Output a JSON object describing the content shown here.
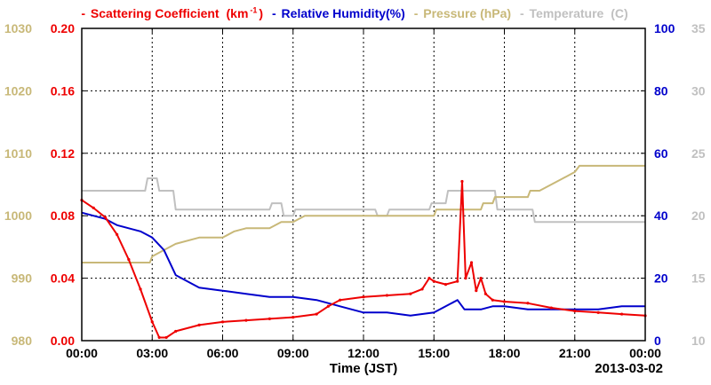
{
  "chart_data": {
    "type": "line",
    "title": "",
    "xlabel": "Time (JST)",
    "date_label": "2013-03-02",
    "x_ticks": [
      "00:00",
      "03:00",
      "06:00",
      "09:00",
      "12:00",
      "15:00",
      "18:00",
      "21:00",
      "00:00"
    ],
    "xlim_hours": [
      0,
      24
    ],
    "grid": true,
    "legend_position": "top",
    "axes": {
      "scattering": {
        "range": [
          0,
          0.2
        ],
        "ticks": [
          "0.00",
          "0.04",
          "0.08",
          "0.12",
          "0.16",
          "0.20"
        ],
        "side": "left-inner"
      },
      "pressure": {
        "range": [
          980,
          1030
        ],
        "ticks": [
          "980",
          "990",
          "1000",
          "1010",
          "1020",
          "1030"
        ],
        "side": "left-outer"
      },
      "humidity": {
        "range": [
          0,
          100
        ],
        "ticks": [
          "0",
          "20",
          "40",
          "60",
          "80",
          "100"
        ],
        "side": "right-inner"
      },
      "temperature": {
        "range": [
          10,
          35
        ],
        "ticks": [
          "10",
          "15",
          "20",
          "25",
          "30",
          "35"
        ],
        "side": "right-outer"
      }
    },
    "series": [
      {
        "name": "Scattering Coefficient",
        "unit_prefix": "(km",
        "unit_sup": "-1",
        "unit_suffix": ")",
        "axis": "scattering",
        "color": "#ee0000",
        "points": [
          [
            0,
            0.09
          ],
          [
            0.5,
            0.085
          ],
          [
            1.0,
            0.079
          ],
          [
            1.5,
            0.068
          ],
          [
            2.0,
            0.052
          ],
          [
            2.5,
            0.033
          ],
          [
            3.0,
            0.012
          ],
          [
            3.3,
            0.002
          ],
          [
            3.6,
            0.002
          ],
          [
            4.0,
            0.006
          ],
          [
            5.0,
            0.01
          ],
          [
            6.0,
            0.012
          ],
          [
            7.0,
            0.013
          ],
          [
            8.0,
            0.014
          ],
          [
            9.0,
            0.015
          ],
          [
            10.0,
            0.017
          ],
          [
            10.5,
            0.022
          ],
          [
            11.0,
            0.026
          ],
          [
            12.0,
            0.028
          ],
          [
            13.0,
            0.029
          ],
          [
            14.0,
            0.03
          ],
          [
            14.5,
            0.033
          ],
          [
            14.8,
            0.04
          ],
          [
            15.0,
            0.038
          ],
          [
            15.5,
            0.036
          ],
          [
            16.0,
            0.038
          ],
          [
            16.2,
            0.102
          ],
          [
            16.35,
            0.04
          ],
          [
            16.6,
            0.05
          ],
          [
            16.8,
            0.032
          ],
          [
            17.0,
            0.04
          ],
          [
            17.2,
            0.03
          ],
          [
            17.5,
            0.026
          ],
          [
            18.0,
            0.025
          ],
          [
            19.0,
            0.024
          ],
          [
            20.0,
            0.021
          ],
          [
            21.0,
            0.019
          ],
          [
            22.0,
            0.018
          ],
          [
            23.0,
            0.017
          ],
          [
            24.0,
            0.016
          ]
        ]
      },
      {
        "name": "Relative Humidity(%)",
        "axis": "humidity",
        "color": "#0000cc",
        "points": [
          [
            0,
            41
          ],
          [
            0.5,
            40
          ],
          [
            1.0,
            39
          ],
          [
            1.5,
            37
          ],
          [
            2.0,
            36
          ],
          [
            2.5,
            35
          ],
          [
            3.0,
            33
          ],
          [
            3.5,
            29
          ],
          [
            4.0,
            21
          ],
          [
            5.0,
            17
          ],
          [
            6.0,
            16
          ],
          [
            7.0,
            15
          ],
          [
            8.0,
            14
          ],
          [
            9.0,
            14
          ],
          [
            10.0,
            13
          ],
          [
            11.0,
            11
          ],
          [
            12.0,
            9
          ],
          [
            13.0,
            9
          ],
          [
            14.0,
            8
          ],
          [
            15.0,
            9
          ],
          [
            15.5,
            11
          ],
          [
            16.0,
            13
          ],
          [
            16.3,
            10
          ],
          [
            17.0,
            10
          ],
          [
            17.5,
            11
          ],
          [
            18.0,
            11
          ],
          [
            19.0,
            10
          ],
          [
            20.0,
            10
          ],
          [
            21.0,
            10
          ],
          [
            22.0,
            10
          ],
          [
            23.0,
            11
          ],
          [
            24.0,
            11
          ]
        ]
      },
      {
        "name": "Pressure (hPa)",
        "axis": "pressure",
        "color": "#c8b878",
        "points": [
          [
            0,
            992.5
          ],
          [
            2.9,
            992.5
          ],
          [
            3.0,
            993.5
          ],
          [
            3.5,
            994.5
          ],
          [
            4.0,
            995.5
          ],
          [
            5.0,
            996.5
          ],
          [
            6.0,
            996.5
          ],
          [
            6.5,
            997.5
          ],
          [
            7.0,
            998
          ],
          [
            8.0,
            998
          ],
          [
            8.5,
            999
          ],
          [
            9.0,
            999
          ],
          [
            9.5,
            1000
          ],
          [
            15.0,
            1000
          ],
          [
            15.1,
            1001
          ],
          [
            17.0,
            1001
          ],
          [
            17.1,
            1002
          ],
          [
            17.5,
            1002
          ],
          [
            17.6,
            1003
          ],
          [
            19.0,
            1003
          ],
          [
            19.1,
            1004
          ],
          [
            19.5,
            1004
          ],
          [
            20.0,
            1005
          ],
          [
            20.5,
            1006
          ],
          [
            21.0,
            1007
          ],
          [
            21.2,
            1008
          ],
          [
            24.0,
            1008
          ]
        ]
      },
      {
        "name": "Temperature",
        "unit": "(C)",
        "axis": "temperature",
        "color": "#c0c0c0",
        "points": [
          [
            0,
            22
          ],
          [
            2.7,
            22
          ],
          [
            2.8,
            23
          ],
          [
            3.2,
            23
          ],
          [
            3.3,
            22
          ],
          [
            3.9,
            22
          ],
          [
            4.0,
            20.5
          ],
          [
            8.0,
            20.5
          ],
          [
            8.1,
            21
          ],
          [
            8.5,
            21
          ],
          [
            8.6,
            20
          ],
          [
            9.0,
            20
          ],
          [
            9.1,
            20.5
          ],
          [
            12.5,
            20.5
          ],
          [
            12.6,
            20
          ],
          [
            13.0,
            20
          ],
          [
            13.1,
            20.5
          ],
          [
            14.8,
            20.5
          ],
          [
            14.9,
            21
          ],
          [
            15.5,
            21
          ],
          [
            15.6,
            22
          ],
          [
            17.6,
            22
          ],
          [
            17.7,
            20.5
          ],
          [
            19.2,
            20.5
          ],
          [
            19.3,
            19.5
          ],
          [
            24,
            19.5
          ]
        ]
      }
    ]
  }
}
